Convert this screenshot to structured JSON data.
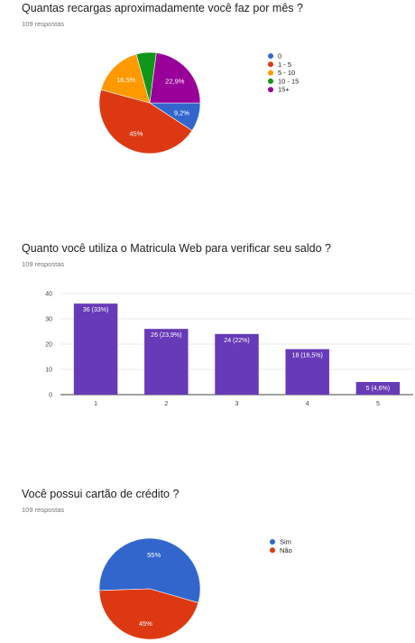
{
  "questions": [
    {
      "title": "Quantas recargas aproximadamente você faz por mês ?",
      "responses": "109 respostas"
    },
    {
      "title": "Quanto você utiliza o Matricula Web para verificar seu saldo ?",
      "responses": "109 respostas"
    },
    {
      "title": "Você possui cartão de crédito ?",
      "responses": "109 respostas"
    }
  ],
  "chart_data": [
    {
      "type": "pie",
      "categories": [
        "0",
        "1 - 5",
        "5 - 10",
        "10 - 15",
        "15+"
      ],
      "values": [
        9.2,
        45,
        16.5,
        6.4,
        22.9
      ],
      "labels": [
        "9,2%",
        "45%",
        "16,5%",
        "",
        "22,9%"
      ],
      "colors": [
        "#3366cc",
        "#dc3912",
        "#ff9900",
        "#109618",
        "#990099"
      ],
      "legend": "right"
    },
    {
      "type": "bar",
      "categories": [
        "1",
        "2",
        "3",
        "4",
        "5"
      ],
      "values": [
        36,
        26,
        24,
        18,
        5
      ],
      "labels": [
        "36 (33%)",
        "26 (23,9%)",
        "24 (22%)",
        "18 (16,5%)",
        "5 (4,6%)"
      ],
      "ylim": [
        0,
        40
      ],
      "yticks": [
        "0",
        "10",
        "20",
        "30",
        "40"
      ],
      "grid": true,
      "color": "#673ab7"
    },
    {
      "type": "pie",
      "categories": [
        "Sim",
        "Não"
      ],
      "values": [
        55,
        45
      ],
      "labels": [
        "55%",
        "45%"
      ],
      "colors": [
        "#3366cc",
        "#dc3912"
      ],
      "legend": "right"
    }
  ]
}
